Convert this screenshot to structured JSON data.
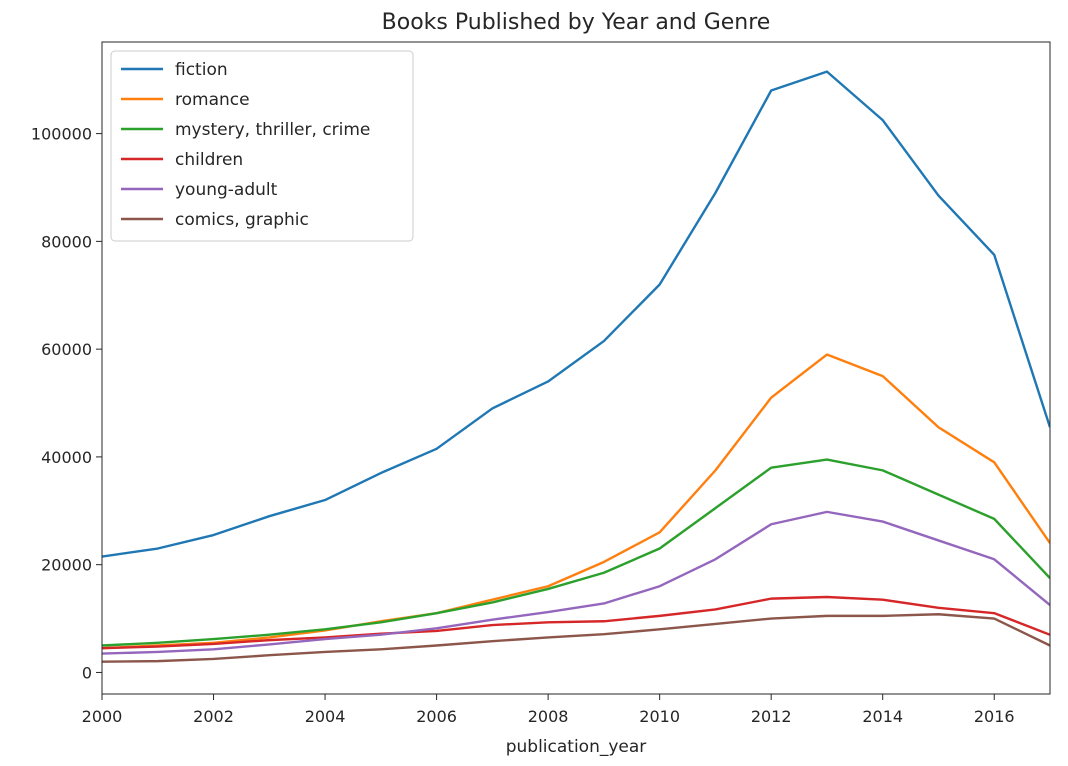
{
  "chart_data": {
    "type": "line",
    "title": "Books Published by Year and Genre",
    "xlabel": "publication_year",
    "ylabel": "",
    "xlim": [
      2000,
      2017
    ],
    "ylim": [
      -4000,
      117000
    ],
    "x_ticks": [
      2000,
      2002,
      2004,
      2006,
      2008,
      2010,
      2012,
      2014,
      2016
    ],
    "y_ticks": [
      0,
      20000,
      40000,
      60000,
      80000,
      100000
    ],
    "grid": false,
    "legend_position": "top-left",
    "x": [
      2000,
      2001,
      2002,
      2003,
      2004,
      2005,
      2006,
      2007,
      2008,
      2009,
      2010,
      2011,
      2012,
      2013,
      2014,
      2015,
      2016,
      2017
    ],
    "series": [
      {
        "name": "fiction",
        "color": "#1f77b4",
        "values": [
          21500,
          23000,
          25500,
          29000,
          32000,
          37000,
          41500,
          49000,
          54000,
          61500,
          72000,
          89000,
          108000,
          111500,
          102500,
          88500,
          77500,
          45500
        ]
      },
      {
        "name": "romance",
        "color": "#ff7f0e",
        "values": [
          4500,
          5000,
          5500,
          6500,
          7800,
          9500,
          11000,
          13500,
          16000,
          20500,
          26000,
          37500,
          51000,
          59000,
          55000,
          45500,
          39000,
          24000
        ]
      },
      {
        "name": "mystery, thriller, crime",
        "color": "#2ca02c",
        "values": [
          5000,
          5500,
          6200,
          7000,
          8000,
          9300,
          11000,
          13000,
          15500,
          18500,
          23000,
          30500,
          38000,
          39500,
          37500,
          33000,
          28500,
          17500
        ]
      },
      {
        "name": "children",
        "color": "#d62728",
        "values": [
          4500,
          4800,
          5300,
          6000,
          6500,
          7200,
          7700,
          8800,
          9300,
          9500,
          10500,
          11700,
          13700,
          14000,
          13500,
          12000,
          11000,
          7000
        ]
      },
      {
        "name": "young-adult",
        "color": "#9467bd",
        "values": [
          3500,
          3800,
          4300,
          5200,
          6200,
          7000,
          8200,
          9800,
          11200,
          12800,
          16000,
          21000,
          27500,
          29800,
          28000,
          24500,
          21000,
          12500
        ]
      },
      {
        "name": "comics, graphic",
        "color": "#8c564b",
        "values": [
          2000,
          2100,
          2500,
          3200,
          3800,
          4300,
          5000,
          5800,
          6500,
          7100,
          8000,
          9000,
          10000,
          10500,
          10500,
          10800,
          10000,
          5000
        ]
      }
    ]
  }
}
